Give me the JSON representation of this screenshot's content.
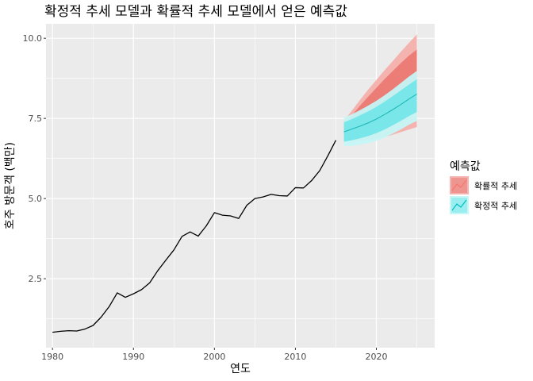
{
  "chart_data": {
    "type": "line",
    "title": "확정적 추세 모델과 확률적 추세 모델에서 얻은 예측값",
    "xlabel": "연도",
    "ylabel": "호주 방문객 (백만)",
    "xlim": [
      1979.2,
      2027.2
    ],
    "ylim": [
      0.35,
      10.45
    ],
    "x_ticks": [
      1980,
      1990,
      2000,
      2010,
      2020
    ],
    "y_ticks": [
      2.5,
      5.0,
      7.5,
      10.0
    ],
    "x_tick_labels": [
      "1980",
      "1990",
      "2000",
      "2010",
      "2020"
    ],
    "y_tick_labels": [
      "2.5",
      "5.0",
      "7.5",
      "10.0"
    ],
    "grid": true,
    "legend": {
      "position": "right",
      "title": "예측값",
      "entries": [
        {
          "label": "확률적 추세",
          "color": "#F8766D"
        },
        {
          "label": "확정적 추세",
          "color": "#00BFC4"
        }
      ]
    },
    "history": {
      "x": [
        1980,
        1981,
        1982,
        1983,
        1984,
        1985,
        1986,
        1987,
        1988,
        1989,
        1990,
        1991,
        1992,
        1993,
        1994,
        1995,
        1996,
        1997,
        1998,
        1999,
        2000,
        2001,
        2002,
        2003,
        2004,
        2005,
        2006,
        2007,
        2008,
        2009,
        2010,
        2011,
        2012,
        2013,
        2014,
        2015
      ],
      "y": [
        0.83,
        0.86,
        0.88,
        0.87,
        0.93,
        1.04,
        1.3,
        1.63,
        2.06,
        1.92,
        2.03,
        2.16,
        2.37,
        2.75,
        3.08,
        3.4,
        3.82,
        3.96,
        3.83,
        4.15,
        4.56,
        4.48,
        4.46,
        4.38,
        4.79,
        5.0,
        5.05,
        5.13,
        5.09,
        5.08,
        5.34,
        5.33,
        5.56,
        5.87,
        6.33,
        6.82
      ]
    },
    "forecasts": [
      {
        "name": "확률적 추세",
        "color": "#F8766D",
        "x": [
          2016,
          2017,
          2018,
          2019,
          2020,
          2021,
          2022,
          2023,
          2024,
          2025
        ],
        "lo95": [
          6.85,
          6.8,
          6.8,
          6.82,
          6.87,
          6.92,
          6.99,
          7.07,
          7.15,
          7.23
        ],
        "lo80": [
          6.95,
          6.98,
          7.02,
          7.08,
          7.17,
          7.28,
          7.4,
          7.53,
          7.67,
          7.8
        ],
        "hi80": [
          7.3,
          7.6,
          7.9,
          8.18,
          8.45,
          8.72,
          8.97,
          9.22,
          9.45,
          9.65
        ],
        "hi95": [
          7.42,
          7.75,
          8.08,
          8.4,
          8.7,
          9.0,
          9.28,
          9.57,
          9.85,
          10.12
        ]
      },
      {
        "name": "확정적 추세",
        "color": "#00BFC4",
        "x": [
          2016,
          2017,
          2018,
          2019,
          2020,
          2021,
          2022,
          2023,
          2024,
          2025
        ],
        "mean": [
          7.08,
          7.17,
          7.26,
          7.36,
          7.48,
          7.62,
          7.77,
          7.93,
          8.1,
          8.26
        ],
        "lo95": [
          6.63,
          6.64,
          6.68,
          6.73,
          6.8,
          6.9,
          7.02,
          7.15,
          7.3,
          7.42
        ],
        "lo80": [
          6.77,
          6.82,
          6.88,
          6.95,
          7.04,
          7.15,
          7.28,
          7.42,
          7.57,
          7.7
        ],
        "hi80": [
          7.38,
          7.48,
          7.6,
          7.72,
          7.86,
          8.02,
          8.19,
          8.37,
          8.55,
          8.72
        ],
        "hi95": [
          7.52,
          7.63,
          7.76,
          7.9,
          8.05,
          8.22,
          8.4,
          8.6,
          8.8,
          8.98
        ]
      }
    ]
  }
}
